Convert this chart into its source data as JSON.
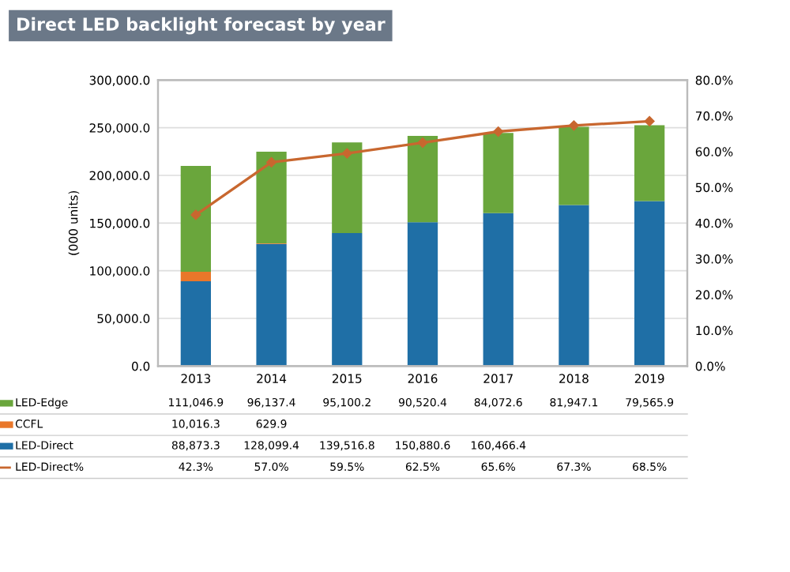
{
  "chart_data": {
    "type": "bar",
    "title": "Direct LED backlight forecast by year",
    "ylabel": "(000 units)",
    "stacked": true,
    "grid": "y",
    "legend": "bottom",
    "marker": "diamond",
    "categories": [
      "2013",
      "2014",
      "2015",
      "2016",
      "2017",
      "2018",
      "2019"
    ],
    "series": [
      {
        "name": "LED-Direct",
        "color": "#1f6fa6",
        "values": [
          88873.3,
          128099.4,
          139516.8,
          150880.6,
          160466.4,
          169000,
          173000
        ],
        "value_labels": [
          "88,873.3",
          "128,099.4",
          "139,516.8",
          "150,880.6",
          "160,466.4",
          null,
          null
        ]
      },
      {
        "name": "CCFL",
        "color": "#e9772a",
        "values": [
          10016.3,
          629.9,
          null,
          null,
          null,
          null,
          null
        ],
        "value_labels": [
          "10,016.3",
          "629.9",
          null,
          null,
          null,
          null,
          null
        ]
      },
      {
        "name": "LED-Edge",
        "color": "#6aa63c",
        "values": [
          111046.9,
          96137.4,
          95100.2,
          90520.4,
          84072.6,
          81947.1,
          79565.9
        ],
        "value_labels": [
          "111,046.9",
          "96,137.4",
          "95,100.2",
          "90,520.4",
          "84,072.6",
          "81,947.1",
          "79,565.9"
        ]
      },
      {
        "name": "LED-Direct%",
        "type": "line",
        "axis": "y2",
        "color": "#c8672f",
        "values": [
          42.3,
          57.0,
          59.5,
          62.5,
          65.6,
          67.3,
          68.5
        ],
        "value_labels": [
          "42.3%",
          "57.0%",
          "59.5%",
          "62.5%",
          "65.6%",
          "67.3%",
          "68.5%"
        ]
      }
    ],
    "ylim": [
      0,
      300000
    ],
    "yticks": [
      {
        "value": 0,
        "label": "0.0"
      },
      {
        "value": 50000,
        "label": "50,000.0"
      },
      {
        "value": 100000,
        "label": "100,000.0"
      },
      {
        "value": 150000,
        "label": "150,000.0"
      },
      {
        "value": 200000,
        "label": "200,000.0"
      },
      {
        "value": 250000,
        "label": "250,000.0"
      },
      {
        "value": 300000,
        "label": "300,000.0"
      }
    ],
    "y2lim": [
      0,
      80
    ],
    "y2ticks": [
      {
        "value": 0,
        "label": "0.0%"
      },
      {
        "value": 10,
        "label": "10.0%"
      },
      {
        "value": 20,
        "label": "20.0%"
      },
      {
        "value": 30,
        "label": "30.0%"
      },
      {
        "value": 40,
        "label": "40.0%"
      },
      {
        "value": 50,
        "label": "50.0%"
      },
      {
        "value": 60,
        "label": "60.0%"
      },
      {
        "value": 70,
        "label": "70.0%"
      },
      {
        "value": 80,
        "label": "80.0%"
      }
    ]
  }
}
